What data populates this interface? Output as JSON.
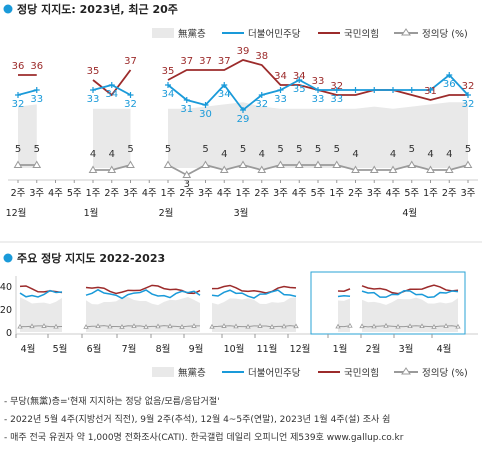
{
  "colors": {
    "dem": "#1a9ad9",
    "ppp": "#9c2b2b",
    "justice": "#9a9a9a",
    "none": "#e9e9e9",
    "box": "#29a3d6"
  },
  "top": {
    "title": "정당 지지도: 2023년, 최근 20주",
    "legend": {
      "none": "無黨층",
      "dem": "더불어민주당",
      "ppp": "국민의힘",
      "justice": "정의당 (%)"
    },
    "chart_data": {
      "type": "line",
      "categories": [
        "2주",
        "3주",
        "4주",
        "5주",
        "1주",
        "2주",
        "3주",
        "4주",
        "1주",
        "2주",
        "3주",
        "4주",
        "1주",
        "2주",
        "3주",
        "4주",
        "5주",
        "1주",
        "2주",
        "3주",
        "4주",
        "5주",
        "1주",
        "2주",
        "3주"
      ],
      "month_labels": [
        {
          "text": "12월",
          "at": 0
        },
        {
          "text": "1월",
          "at": 4
        },
        {
          "text": "2월",
          "at": 8
        },
        {
          "text": "3월",
          "at": 12
        },
        {
          "text": "4월",
          "at": 21
        }
      ],
      "series": [
        {
          "name": "無黨층",
          "values": [
            28,
            29,
            null,
            null,
            27,
            27,
            27,
            null,
            27,
            27,
            28,
            29,
            30,
            28,
            27,
            27,
            27,
            27,
            27,
            28,
            27,
            28,
            29,
            30,
            30
          ]
        },
        {
          "name": "더불어민주당",
          "values": [
            32,
            33,
            null,
            null,
            33,
            34,
            32,
            null,
            34,
            31,
            30,
            34,
            29,
            32,
            33,
            35,
            33,
            33,
            33,
            33,
            33,
            33,
            33,
            36,
            32
          ]
        },
        {
          "name": "국민의힘",
          "values": [
            36,
            36,
            null,
            null,
            35,
            32,
            37,
            null,
            35,
            37,
            37,
            37,
            39,
            38,
            34,
            34,
            33,
            32,
            32,
            33,
            33,
            32,
            31,
            32,
            32
          ]
        },
        {
          "name": "정의당",
          "values": [
            5,
            5,
            null,
            null,
            4,
            4,
            5,
            null,
            5,
            3,
            5,
            4,
            5,
            4,
            5,
            5,
            5,
            5,
            4,
            4,
            4,
            5,
            4,
            4,
            5
          ]
        }
      ],
      "value_labels": {
        "dem": [
          32,
          33,
          null,
          null,
          33,
          34,
          32,
          null,
          34,
          31,
          30,
          34,
          29,
          32,
          33,
          35,
          33,
          33,
          null,
          null,
          null,
          null,
          null,
          36,
          32
        ],
        "ppp": [
          36,
          36,
          null,
          null,
          35,
          null,
          37,
          null,
          35,
          37,
          37,
          37,
          39,
          38,
          34,
          34,
          33,
          32,
          null,
          null,
          null,
          null,
          31,
          null,
          32
        ],
        "justice": [
          5,
          5,
          null,
          null,
          4,
          4,
          5,
          null,
          5,
          3,
          5,
          4,
          5,
          4,
          5,
          5,
          5,
          5,
          4,
          null,
          4,
          5,
          4,
          4,
          5
        ]
      }
    }
  },
  "bottom": {
    "title": "주요 정당 지지도 2022-2023",
    "legend": {
      "none": "無黨층",
      "dem": "더불어민주당",
      "ppp": "국민의힘",
      "justice": "정의당 (%)"
    },
    "chart_data": {
      "type": "line",
      "ylim": [
        0,
        50
      ],
      "y_ticks": [
        "40",
        "20",
        "0"
      ],
      "month_labels": [
        "4월",
        "5월",
        "6월",
        "7월",
        "8월",
        "9월",
        "10월",
        "11월",
        "12월",
        "1월",
        "2월",
        "3월",
        "4월"
      ]
    }
  },
  "notes": [
    "- 무당(無黨)층='현재 지지하는 정당 없음/모름/응답거절'",
    "- 2022년 5월 4주(지방선거 직전), 9월 2주(추석), 12월 4~5주(연말), 2023년 1월 4주(설) 조사 쉼",
    "- 매주 전국 유권자 약 1,000명 전화조사(CATI). 한국갤럽 데일리 오피니언 제539호 www.gallup.co.kr"
  ]
}
